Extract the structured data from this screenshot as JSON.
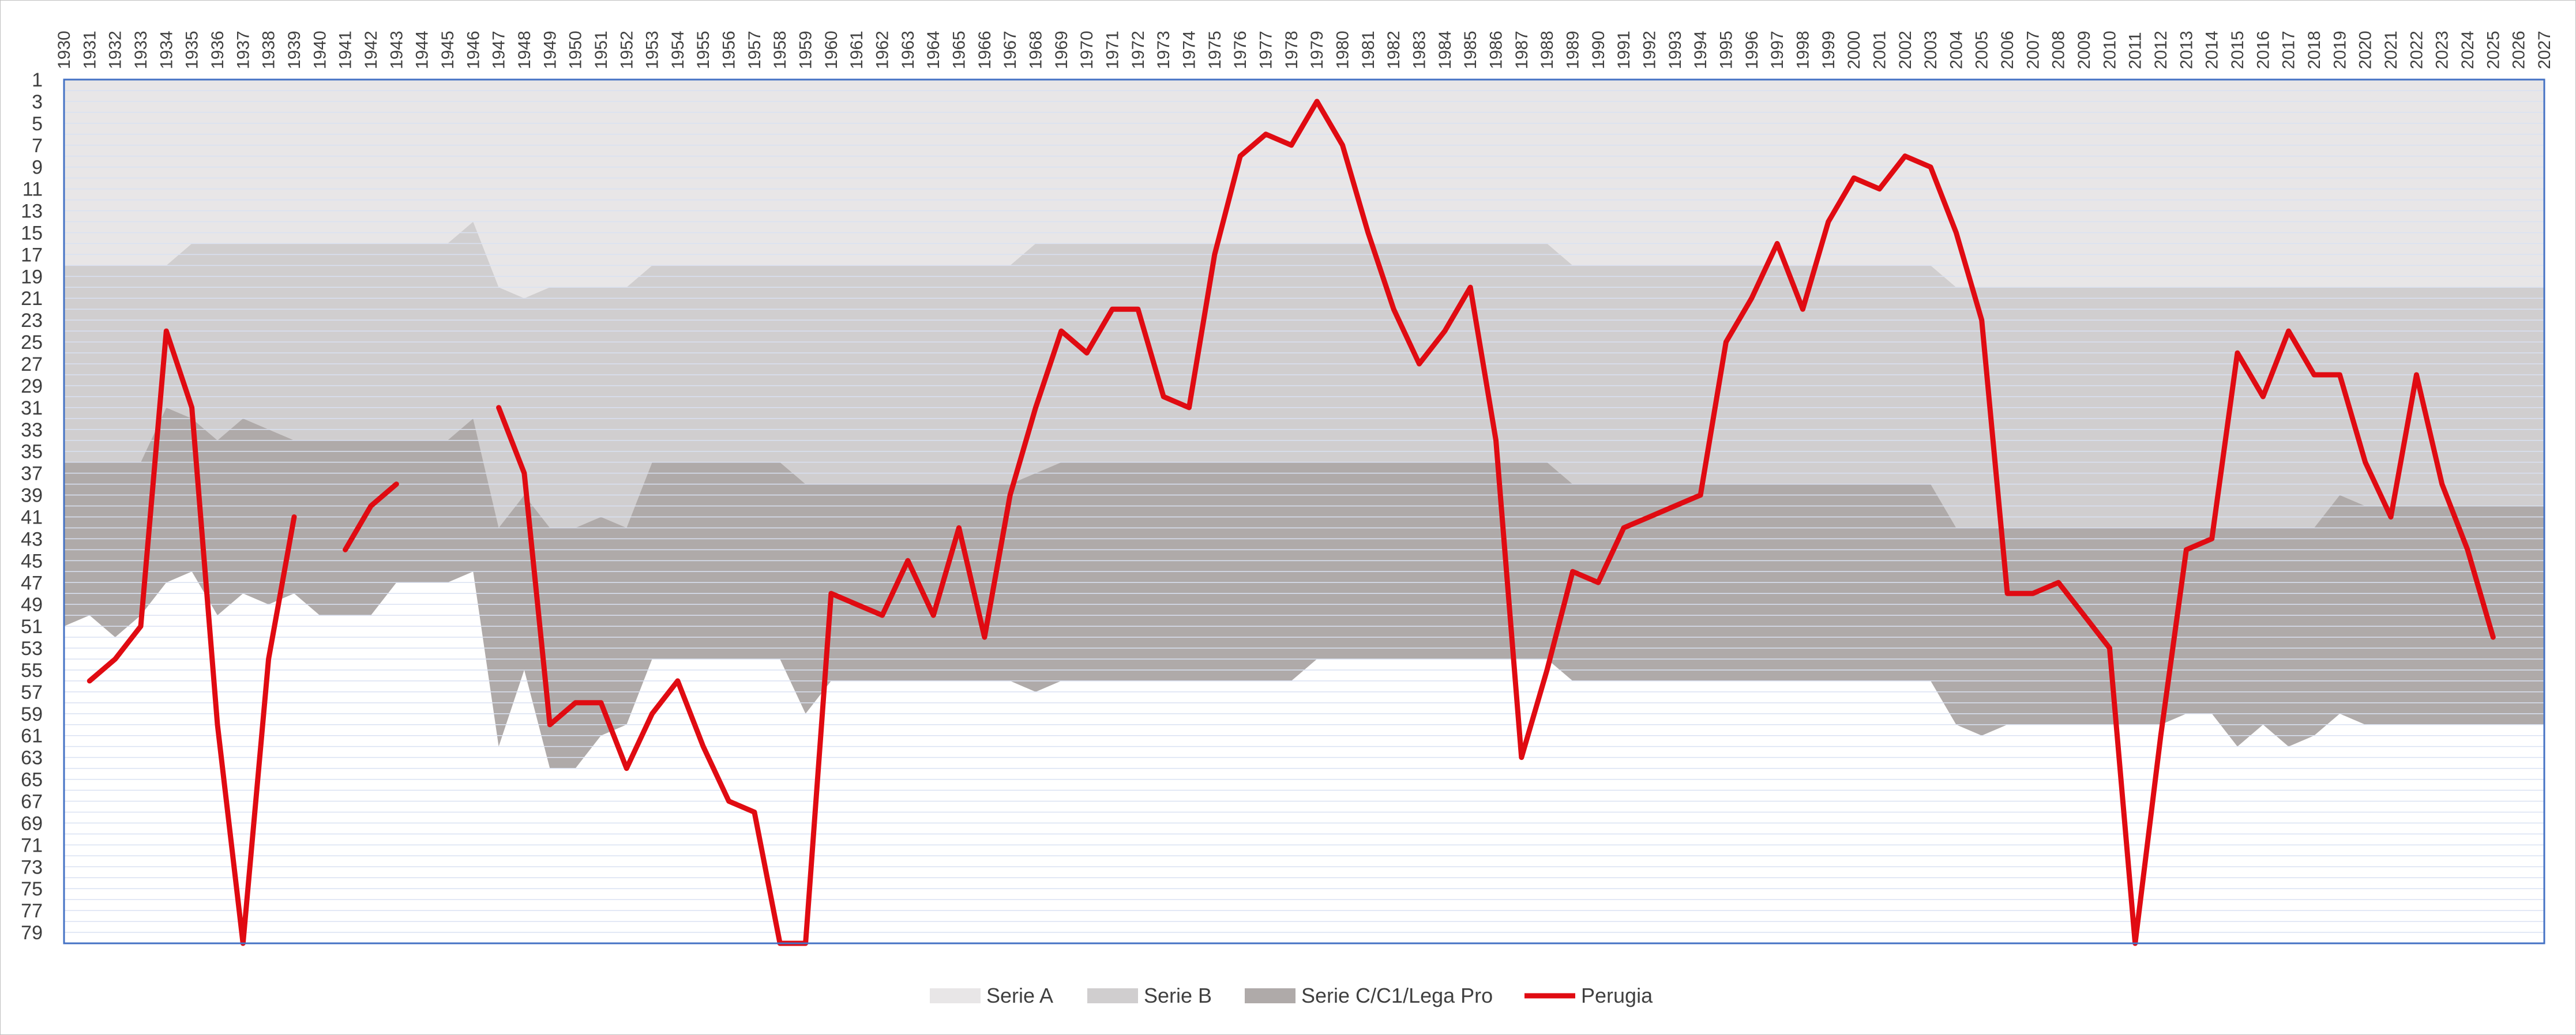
{
  "chart_data": {
    "type": "area",
    "title": "",
    "xlabel": "",
    "ylabel": "",
    "x_range": [
      1930,
      2027
    ],
    "y_range": [
      1,
      80
    ],
    "y_reversed": true,
    "grid": true,
    "legend_position": "bottom",
    "colors": {
      "serie_a": "#e8e6e7",
      "serie_b": "#d0cecf",
      "serie_c": "#afaaa9",
      "perugia": "#e00b12",
      "grid": "#d9e1f2",
      "plot_border": "#4472c4"
    },
    "x_ticks": [
      "1930",
      "1931",
      "1932",
      "1933",
      "1934",
      "1935",
      "1936",
      "1937",
      "1938",
      "1939",
      "1940",
      "1941",
      "1942",
      "1943",
      "1944",
      "1945",
      "1946",
      "1947",
      "1948",
      "1949",
      "1950",
      "1951",
      "1952",
      "1953",
      "1954",
      "1955",
      "1956",
      "1957",
      "1958",
      "1959",
      "1960",
      "1961",
      "1962",
      "1963",
      "1964",
      "1965",
      "1966",
      "1967",
      "1968",
      "1969",
      "1970",
      "1971",
      "1972",
      "1973",
      "1974",
      "1975",
      "1976",
      "1977",
      "1978",
      "1979",
      "1980",
      "1981",
      "1982",
      "1983",
      "1984",
      "1985",
      "1986",
      "1987",
      "1988",
      "1989",
      "1990",
      "1991",
      "1992",
      "1993",
      "1994",
      "1995",
      "1996",
      "1997",
      "1998",
      "1999",
      "2000",
      "2001",
      "2002",
      "2003",
      "2004",
      "2005",
      "2006",
      "2007",
      "2008",
      "2009",
      "2010",
      "2011",
      "2012",
      "2013",
      "2014",
      "2015",
      "2016",
      "2017",
      "2018",
      "2019",
      "2020",
      "2021",
      "2022",
      "2023",
      "2024",
      "2025",
      "2026",
      "2027"
    ],
    "y_ticks": [
      "1",
      "3",
      "5",
      "7",
      "9",
      "11",
      "13",
      "15",
      "17",
      "19",
      "21",
      "23",
      "25",
      "27",
      "29",
      "31",
      "33",
      "35",
      "37",
      "39",
      "41",
      "43",
      "45",
      "47",
      "49",
      "51",
      "53",
      "55",
      "57",
      "59",
      "61",
      "63",
      "65",
      "67",
      "69",
      "71",
      "73",
      "75",
      "77",
      "79"
    ],
    "legend": [
      "Serie A",
      "Serie B",
      "Serie C/C1/Lega Pro",
      "Perugia"
    ],
    "bands": {
      "x": [
        1930,
        1931,
        1932,
        1933,
        1934,
        1935,
        1936,
        1937,
        1938,
        1939,
        1940,
        1941,
        1942,
        1943,
        1944,
        1945,
        1946,
        1947,
        1948,
        1949,
        1950,
        1951,
        1952,
        1953,
        1954,
        1955,
        1956,
        1957,
        1958,
        1959,
        1960,
        1961,
        1962,
        1963,
        1964,
        1965,
        1966,
        1967,
        1968,
        1969,
        1970,
        1971,
        1972,
        1973,
        1974,
        1975,
        1976,
        1977,
        1978,
        1979,
        1980,
        1981,
        1982,
        1983,
        1984,
        1985,
        1986,
        1987,
        1988,
        1989,
        1990,
        1991,
        1992,
        1993,
        1994,
        1995,
        1996,
        1997,
        1998,
        1999,
        2000,
        2001,
        2002,
        2003,
        2004,
        2005,
        2006,
        2007,
        2008,
        2009,
        2010,
        2011,
        2012,
        2013,
        2014,
        2015,
        2016,
        2017,
        2018,
        2019,
        2020,
        2021,
        2022,
        2023,
        2024,
        2025,
        2026,
        2027
      ],
      "serie_a_bottom": [
        18,
        18,
        18,
        18,
        18,
        16,
        16,
        16,
        16,
        16,
        16,
        16,
        16,
        16,
        16,
        16,
        14,
        20,
        21,
        20,
        20,
        20,
        20,
        18,
        18,
        18,
        18,
        18,
        18,
        18,
        18,
        18,
        18,
        18,
        18,
        18,
        18,
        18,
        16,
        16,
        16,
        16,
        16,
        16,
        16,
        16,
        16,
        16,
        16,
        16,
        16,
        16,
        16,
        16,
        16,
        16,
        16,
        16,
        16,
        18,
        18,
        18,
        18,
        18,
        18,
        18,
        18,
        18,
        18,
        18,
        18,
        18,
        18,
        18,
        20,
        20,
        20,
        20,
        20,
        20,
        20,
        20,
        20,
        20,
        20,
        20,
        20,
        20,
        20,
        20,
        20,
        20,
        20,
        20,
        20,
        20,
        20,
        20
      ],
      "serie_b_bottom": [
        36,
        36,
        36,
        36,
        31,
        32,
        34,
        32,
        33,
        34,
        34,
        34,
        34,
        34,
        34,
        34,
        32,
        42,
        39,
        42,
        42,
        41,
        42,
        36,
        36,
        36,
        36,
        36,
        36,
        38,
        38,
        38,
        38,
        38,
        38,
        38,
        38,
        38,
        37,
        36,
        36,
        36,
        36,
        36,
        36,
        36,
        36,
        36,
        36,
        36,
        36,
        36,
        36,
        36,
        36,
        36,
        36,
        36,
        36,
        38,
        38,
        38,
        38,
        38,
        38,
        38,
        38,
        38,
        38,
        38,
        38,
        38,
        38,
        38,
        42,
        42,
        42,
        42,
        42,
        42,
        42,
        42,
        42,
        42,
        42,
        42,
        42,
        42,
        42,
        39,
        40,
        40,
        40,
        40,
        40,
        40,
        40,
        40
      ],
      "serie_c_bottom": [
        51,
        50,
        52,
        50,
        47,
        46,
        50,
        48,
        49,
        48,
        50,
        50,
        50,
        47,
        47,
        47,
        46,
        62,
        55,
        64,
        64,
        61,
        60,
        54,
        54,
        54,
        54,
        54,
        54,
        59,
        56,
        56,
        56,
        56,
        56,
        56,
        56,
        56,
        57,
        56,
        56,
        56,
        56,
        56,
        56,
        56,
        56,
        56,
        56,
        54,
        54,
        54,
        54,
        54,
        54,
        54,
        54,
        54,
        54,
        56,
        56,
        56,
        56,
        56,
        56,
        56,
        56,
        56,
        56,
        56,
        56,
        56,
        56,
        56,
        60,
        61,
        60,
        60,
        60,
        60,
        60,
        60,
        60,
        59,
        59,
        62,
        60,
        62,
        61,
        59,
        60,
        60,
        60,
        60,
        60,
        60,
        60,
        60
      ]
    },
    "series": [
      {
        "name": "Perugia",
        "segments": [
          {
            "x": [
              1931,
              1932,
              1933,
              1934,
              1935,
              1936,
              1937,
              1938,
              1939
            ],
            "y": [
              56,
              54,
              51,
              24,
              31,
              60,
              80,
              54,
              41
            ]
          },
          {
            "x": [
              1941,
              1942,
              1943
            ],
            "y": [
              44,
              40,
              38
            ]
          },
          {
            "x": [
              1947,
              1948,
              1949,
              1950,
              1951,
              1952,
              1953,
              1954,
              1955,
              1956,
              1957,
              1958,
              1959,
              1960,
              1961,
              1962,
              1963,
              1964,
              1965,
              1966,
              1967,
              1968,
              1969,
              1970,
              1971,
              1972,
              1973,
              1974,
              1975,
              1976,
              1977,
              1978,
              1979,
              1980,
              1981,
              1982,
              1983,
              1984,
              1985,
              1986,
              1987,
              1988,
              1989,
              1990,
              1991,
              1992,
              1993,
              1994,
              1995,
              1996,
              1997,
              1998,
              1999,
              2000,
              2001,
              2002,
              2003,
              2004,
              2005,
              2006,
              2007,
              2008,
              2009,
              2010,
              2011,
              2012,
              2013,
              2014,
              2015,
              2016,
              2017,
              2018,
              2019,
              2020,
              2021,
              2022,
              2023,
              2024,
              2025
            ],
            "y": [
              31,
              37,
              60,
              58,
              58,
              64,
              59,
              56,
              62,
              67,
              68,
              80,
              80,
              48,
              49,
              50,
              45,
              50,
              42,
              52,
              39,
              31,
              24,
              26,
              22,
              22,
              30,
              31,
              17,
              8,
              6,
              7,
              3,
              7,
              15,
              22,
              27,
              24,
              20,
              34,
              63,
              55,
              46,
              47,
              42,
              41,
              40,
              39,
              25,
              21,
              16,
              22,
              14,
              10,
              11,
              8,
              9,
              15,
              23,
              48,
              48,
              47,
              50,
              53,
              80,
              61,
              44,
              43,
              26,
              30,
              24,
              28,
              28,
              36,
              41,
              28,
              38,
              44,
              52
            ]
          }
        ]
      }
    ]
  }
}
